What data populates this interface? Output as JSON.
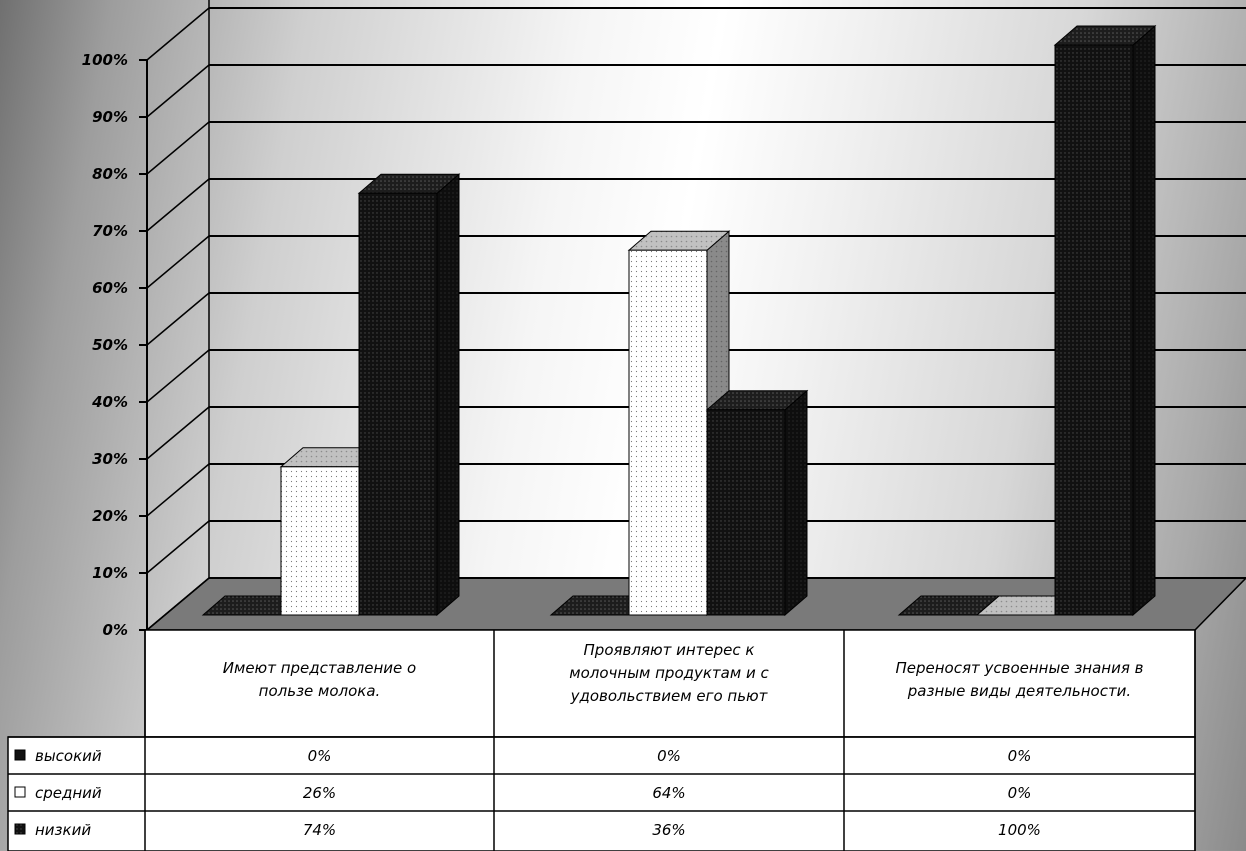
{
  "chart_data": {
    "type": "bar",
    "title": "",
    "xlabel": "",
    "ylabel": "",
    "ylim": [
      0,
      100
    ],
    "y_ticks": [
      "0%",
      "10%",
      "20%",
      "30%",
      "40%",
      "50%",
      "60%",
      "70%",
      "80%",
      "90%",
      "100%"
    ],
    "categories": [
      "Имеют представление о пользе молока.",
      "Проявляют интерес к молочным продуктам и с удовольствием его пьют",
      "Переносят усвоенные знания в разные виды деятельности."
    ],
    "category_lines": [
      [
        "Имеют представление о",
        "пользе молока."
      ],
      [
        "Проявляют интерес к",
        "молочным продуктам и с",
        "удовольствием его пьют"
      ],
      [
        "Переносят усвоенные знания в",
        "разные виды деятельности."
      ]
    ],
    "series": [
      {
        "name": "высокий",
        "values": [
          0,
          0,
          0
        ],
        "labels": [
          "0%",
          "0%",
          "0%"
        ],
        "color": "#111111"
      },
      {
        "name": "средний",
        "values": [
          26,
          64,
          0
        ],
        "labels": [
          "26%",
          "64%",
          "0%"
        ],
        "color": "#ffffff"
      },
      {
        "name": "низкий",
        "values": [
          74,
          36,
          100
        ],
        "labels": [
          "74%",
          "36%",
          "100%"
        ],
        "color": "#161616"
      }
    ],
    "grid": true,
    "legend": "data table",
    "colors": {
      "floor": "#7a7a7a",
      "dark_face": "#161616",
      "dark_top": "#2a2a2a",
      "light_face": "#ffffff",
      "light_top": "#b8b8b8",
      "light_side": "#8c8c8c"
    }
  }
}
